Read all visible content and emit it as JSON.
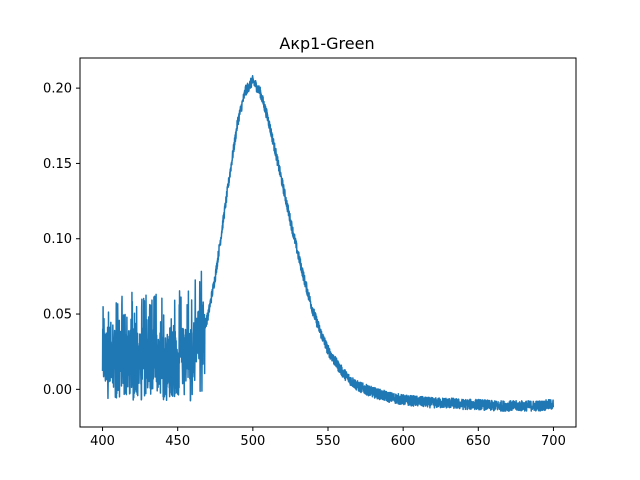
{
  "chart_data": {
    "type": "line",
    "title": "Акр1-Green",
    "xlabel": "",
    "ylabel": "",
    "xlim": [
      385,
      715
    ],
    "ylim": [
      -0.025,
      0.22
    ],
    "xticks": [
      400,
      450,
      500,
      550,
      600,
      650,
      700
    ],
    "xtick_labels": [
      "400",
      "450",
      "500",
      "550",
      "600",
      "650",
      "700"
    ],
    "yticks": [
      0.0,
      0.05,
      0.1,
      0.15,
      0.2
    ],
    "ytick_labels": [
      "0.00",
      "0.05",
      "0.10",
      "0.15",
      "0.20"
    ],
    "grid": false,
    "series": [
      {
        "name": "Акр1-Green",
        "color": "#1f77b4",
        "x": [
          400,
          405,
          410,
          415,
          420,
          425,
          430,
          435,
          440,
          445,
          450,
          455,
          460,
          465,
          470,
          475,
          480,
          485,
          490,
          495,
          500,
          505,
          510,
          515,
          520,
          525,
          530,
          535,
          540,
          545,
          550,
          555,
          560,
          565,
          570,
          575,
          580,
          590,
          600,
          610,
          620,
          630,
          640,
          650,
          660,
          670,
          680,
          690,
          700
        ],
        "y": [
          0.02,
          0.025,
          0.022,
          0.02,
          0.02,
          0.018,
          0.02,
          0.02,
          0.018,
          0.02,
          0.02,
          0.023,
          0.028,
          0.035,
          0.048,
          0.075,
          0.11,
          0.145,
          0.178,
          0.198,
          0.205,
          0.197,
          0.18,
          0.158,
          0.135,
          0.112,
          0.09,
          0.07,
          0.052,
          0.038,
          0.026,
          0.018,
          0.011,
          0.006,
          0.002,
          0.0,
          -0.002,
          -0.005,
          -0.007,
          -0.008,
          -0.009,
          -0.009,
          -0.01,
          -0.01,
          -0.011,
          -0.011,
          -0.011,
          -0.011,
          -0.01
        ]
      }
    ]
  }
}
